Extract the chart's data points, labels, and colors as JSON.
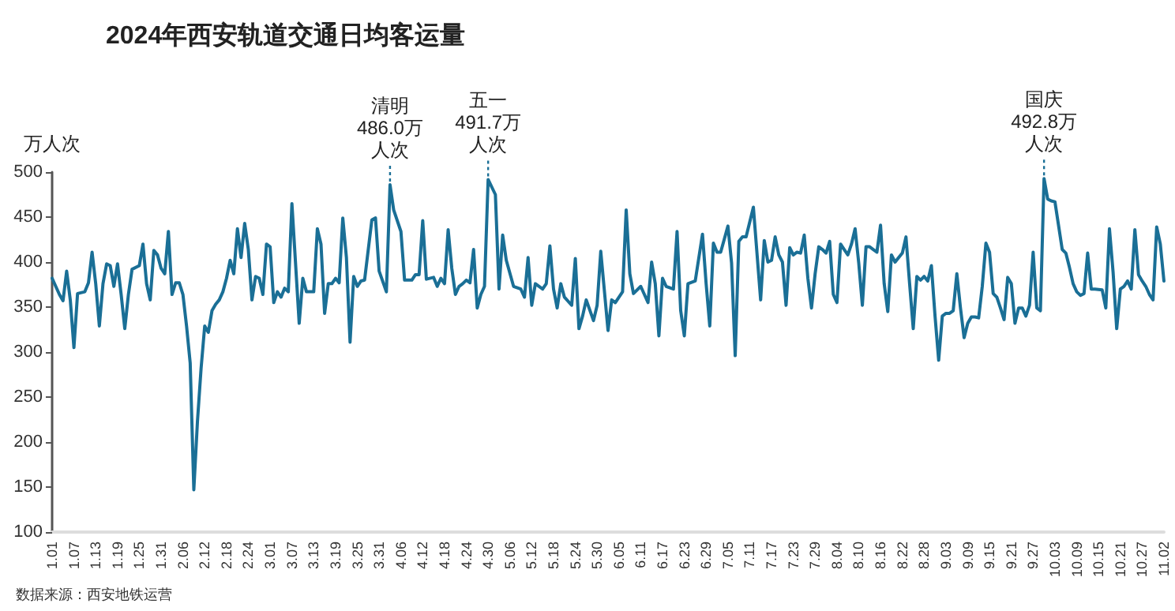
{
  "chart_data": {
    "type": "line",
    "title": "2024年西安轨道交通日均客运量",
    "ylabel": "万人次",
    "annotations": [
      {
        "text": "清明\n486.0万人次",
        "x": "2024-04-03",
        "y": 486.0
      },
      {
        "text": "五一\n491.7万人次",
        "x": "2024-04-30",
        "y": 491.7
      },
      {
        "text": "国庆\n492.8万人次",
        "x": "2024-09-30",
        "y": 492.8
      },
      "数据来源：西安地铁运营"
    ],
    "xlim": [
      "2024-01-01",
      "2024-11-02"
    ],
    "ylim": [
      100,
      500
    ],
    "yticks": [
      100,
      150,
      200,
      250,
      300,
      350,
      400,
      450,
      500
    ],
    "xticks": [
      {
        "value": "2024-01-01",
        "label": "1.01"
      },
      {
        "value": "2024-01-07",
        "label": "1.07"
      },
      {
        "value": "2024-01-13",
        "label": "1.13"
      },
      {
        "value": "2024-01-19",
        "label": "1.19"
      },
      {
        "value": "2024-01-25",
        "label": "1.25"
      },
      {
        "value": "2024-01-31",
        "label": "1.31"
      },
      {
        "value": "2024-02-06",
        "label": "2.06"
      },
      {
        "value": "2024-02-12",
        "label": "2.12"
      },
      {
        "value": "2024-02-18",
        "label": "2.18"
      },
      {
        "value": "2024-02-24",
        "label": "2.24"
      },
      {
        "value": "2024-03-01",
        "label": "3.01"
      },
      {
        "value": "2024-03-07",
        "label": "3.07"
      },
      {
        "value": "2024-03-13",
        "label": "3.13"
      },
      {
        "value": "2024-03-19",
        "label": "3.19"
      },
      {
        "value": "2024-03-25",
        "label": "3.25"
      },
      {
        "value": "2024-03-31",
        "label": "3.31"
      },
      {
        "value": "2024-04-06",
        "label": "4.06"
      },
      {
        "value": "2024-04-12",
        "label": "4.12"
      },
      {
        "value": "2024-04-18",
        "label": "4.18"
      },
      {
        "value": "2024-04-24",
        "label": "4.24"
      },
      {
        "value": "2024-04-30",
        "label": "4.30"
      },
      {
        "value": "2024-05-06",
        "label": "5.06"
      },
      {
        "value": "2024-05-12",
        "label": "5.12"
      },
      {
        "value": "2024-05-18",
        "label": "5.18"
      },
      {
        "value": "2024-05-24",
        "label": "5.24"
      },
      {
        "value": "2024-05-30",
        "label": "5.30"
      },
      {
        "value": "2024-06-05",
        "label": "6.05"
      },
      {
        "value": "2024-06-11",
        "label": "6.11"
      },
      {
        "value": "2024-06-17",
        "label": "6.17"
      },
      {
        "value": "2024-06-23",
        "label": "6.23"
      },
      {
        "value": "2024-06-29",
        "label": "6.29"
      },
      {
        "value": "2024-07-05",
        "label": "7.05"
      },
      {
        "value": "2024-07-11",
        "label": "7.11"
      },
      {
        "value": "2024-07-17",
        "label": "7.17"
      },
      {
        "value": "2024-07-23",
        "label": "7.23"
      },
      {
        "value": "2024-07-29",
        "label": "7.29"
      },
      {
        "value": "2024-08-04",
        "label": "8.04"
      },
      {
        "value": "2024-08-10",
        "label": "8.10"
      },
      {
        "value": "2024-08-16",
        "label": "8.16"
      },
      {
        "value": "2024-08-22",
        "label": "8.22"
      },
      {
        "value": "2024-08-28",
        "label": "8.28"
      },
      {
        "value": "2024-09-03",
        "label": "9.03"
      },
      {
        "value": "2024-09-09",
        "label": "9.09"
      },
      {
        "value": "2024-09-15",
        "label": "9.15"
      },
      {
        "value": "2024-09-21",
        "label": "9.21"
      },
      {
        "value": "2024-09-27",
        "label": "9.27"
      },
      {
        "value": "2024-10-03",
        "label": "10.03"
      },
      {
        "value": "2024-10-09",
        "label": "10.09"
      },
      {
        "value": "2024-10-15",
        "label": "10.15"
      },
      {
        "value": "2024-10-21",
        "label": "10.21"
      },
      {
        "value": "2024-10-27",
        "label": "10.27"
      },
      {
        "value": "2024-11-02",
        "label": "11.02"
      }
    ],
    "series": [
      {
        "color": "#1a6f96",
        "x": [
          "2024-01-01",
          "2024-01-03",
          "2024-01-04",
          "2024-01-05",
          "2024-01-06",
          "2024-01-07",
          "2024-01-08",
          "2024-01-10",
          "2024-01-11",
          "2024-01-12",
          "2024-01-13",
          "2024-01-14",
          "2024-01-15",
          "2024-01-16",
          "2024-01-17",
          "2024-01-18",
          "2024-01-19",
          "2024-01-20",
          "2024-01-21",
          "2024-01-22",
          "2024-01-23",
          "2024-01-25",
          "2024-01-26",
          "2024-01-27",
          "2024-01-28",
          "2024-01-29",
          "2024-01-30",
          "2024-01-31",
          "2024-02-01",
          "2024-02-02",
          "2024-02-03",
          "2024-02-04",
          "2024-02-05",
          "2024-02-06",
          "2024-02-07",
          "2024-02-08",
          "2024-02-09",
          "2024-02-10",
          "2024-02-11",
          "2024-02-12",
          "2024-02-13",
          "2024-02-14",
          "2024-02-15",
          "2024-02-16",
          "2024-02-17",
          "2024-02-18",
          "2024-02-19",
          "2024-02-20",
          "2024-02-21",
          "2024-02-22",
          "2024-02-23",
          "2024-02-24",
          "2024-02-25",
          "2024-02-26",
          "2024-02-27",
          "2024-02-28",
          "2024-02-29",
          "2024-03-01",
          "2024-03-02",
          "2024-03-03",
          "2024-03-04",
          "2024-03-05",
          "2024-03-06",
          "2024-03-07",
          "2024-03-09",
          "2024-03-10",
          "2024-03-11",
          "2024-03-13",
          "2024-03-14",
          "2024-03-15",
          "2024-03-16",
          "2024-03-17",
          "2024-03-18",
          "2024-03-19",
          "2024-03-20",
          "2024-03-21",
          "2024-03-22",
          "2024-03-23",
          "2024-03-24",
          "2024-03-25",
          "2024-03-26",
          "2024-03-27",
          "2024-03-29",
          "2024-03-30",
          "2024-03-31",
          "2024-04-02",
          "2024-04-03",
          "2024-04-04",
          "2024-04-06",
          "2024-04-07",
          "2024-04-09",
          "2024-04-10",
          "2024-04-11",
          "2024-04-12",
          "2024-04-13",
          "2024-04-15",
          "2024-04-16",
          "2024-04-17",
          "2024-04-18",
          "2024-04-19",
          "2024-04-20",
          "2024-04-21",
          "2024-04-22",
          "2024-04-23",
          "2024-04-24",
          "2024-04-25",
          "2024-04-26",
          "2024-04-27",
          "2024-04-28",
          "2024-04-29",
          "2024-04-30",
          "2024-05-02",
          "2024-05-03",
          "2024-05-04",
          "2024-05-05",
          "2024-05-07",
          "2024-05-09",
          "2024-05-10",
          "2024-05-11",
          "2024-05-12",
          "2024-05-13",
          "2024-05-15",
          "2024-05-16",
          "2024-05-17",
          "2024-05-18",
          "2024-05-19",
          "2024-05-20",
          "2024-05-21",
          "2024-05-23",
          "2024-05-24",
          "2024-05-25",
          "2024-05-26",
          "2024-05-27",
          "2024-05-29",
          "2024-05-30",
          "2024-05-31",
          "2024-06-02",
          "2024-06-03",
          "2024-06-04",
          "2024-06-06",
          "2024-06-07",
          "2024-06-08",
          "2024-06-09",
          "2024-06-11",
          "2024-06-12",
          "2024-06-13",
          "2024-06-14",
          "2024-06-15",
          "2024-06-16",
          "2024-06-17",
          "2024-06-18",
          "2024-06-20",
          "2024-06-21",
          "2024-06-22",
          "2024-06-23",
          "2024-06-24",
          "2024-06-26",
          "2024-06-28",
          "2024-06-29",
          "2024-06-30",
          "2024-07-01",
          "2024-07-02",
          "2024-07-03",
          "2024-07-05",
          "2024-07-06",
          "2024-07-07",
          "2024-07-08",
          "2024-07-09",
          "2024-07-10",
          "2024-07-12",
          "2024-07-14",
          "2024-07-15",
          "2024-07-16",
          "2024-07-17",
          "2024-07-18",
          "2024-07-19",
          "2024-07-20",
          "2024-07-21",
          "2024-07-22",
          "2024-07-23",
          "2024-07-24",
          "2024-07-25",
          "2024-07-26",
          "2024-07-27",
          "2024-07-28",
          "2024-07-29",
          "2024-07-30",
          "2024-07-31",
          "2024-08-01",
          "2024-08-02",
          "2024-08-03",
          "2024-08-04",
          "2024-08-05",
          "2024-08-06",
          "2024-08-07",
          "2024-08-08",
          "2024-08-09",
          "2024-08-10",
          "2024-08-11",
          "2024-08-12",
          "2024-08-13",
          "2024-08-14",
          "2024-08-15",
          "2024-08-16",
          "2024-08-17",
          "2024-08-18",
          "2024-08-19",
          "2024-08-20",
          "2024-08-21",
          "2024-08-22",
          "2024-08-23",
          "2024-08-24",
          "2024-08-25",
          "2024-08-26",
          "2024-08-27",
          "2024-08-28",
          "2024-08-29",
          "2024-08-30",
          "2024-08-31",
          "2024-09-01",
          "2024-09-02",
          "2024-09-03",
          "2024-09-04",
          "2024-09-05",
          "2024-09-06",
          "2024-09-07",
          "2024-09-08",
          "2024-09-09",
          "2024-09-10",
          "2024-09-11",
          "2024-09-12",
          "2024-09-13",
          "2024-09-14",
          "2024-09-15",
          "2024-09-16",
          "2024-09-17",
          "2024-09-18",
          "2024-09-19",
          "2024-09-20",
          "2024-09-21",
          "2024-09-22",
          "2024-09-23",
          "2024-09-24",
          "2024-09-25",
          "2024-09-26",
          "2024-09-27",
          "2024-09-28",
          "2024-09-29",
          "2024-09-30",
          "2024-10-01",
          "2024-10-02",
          "2024-10-03",
          "2024-10-05",
          "2024-10-06",
          "2024-10-07",
          "2024-10-08",
          "2024-10-09",
          "2024-10-10",
          "2024-10-11",
          "2024-10-12",
          "2024-10-13",
          "2024-10-14",
          "2024-10-16",
          "2024-10-17",
          "2024-10-18",
          "2024-10-19",
          "2024-10-20",
          "2024-10-21",
          "2024-10-22",
          "2024-10-23",
          "2024-10-24",
          "2024-10-25",
          "2024-10-26",
          "2024-10-27",
          "2024-10-28",
          "2024-10-29",
          "2024-10-30",
          "2024-10-31",
          "2024-11-01",
          "2024-11-02"
        ],
        "values": [
          382,
          364,
          357,
          390,
          358,
          305,
          365,
          367,
          377,
          411,
          376,
          329,
          376,
          398,
          396,
          373,
          398,
          364,
          326,
          364,
          392,
          396,
          420,
          376,
          358,
          413,
          408,
          393,
          387,
          434,
          364,
          377,
          377,
          364,
          329,
          288,
          147,
          223,
          282,
          329,
          322,
          346,
          353,
          358,
          367,
          382,
          402,
          387,
          437,
          405,
          443,
          414,
          358,
          384,
          382,
          364,
          420,
          417,
          355,
          367,
          361,
          371,
          367,
          465,
          332,
          382,
          367,
          367,
          437,
          420,
          343,
          376,
          376,
          382,
          377,
          449,
          405,
          311,
          384,
          373,
          379,
          380,
          447,
          449,
          390,
          367,
          486.0,
          458,
          434,
          380,
          380,
          386,
          386,
          446,
          381,
          383,
          373,
          382,
          376,
          436,
          393,
          364,
          373,
          376,
          380,
          377,
          414,
          349,
          364,
          373,
          491.7,
          475,
          370,
          430,
          402,
          373,
          370,
          361,
          405,
          352,
          376,
          370,
          376,
          418,
          370,
          349,
          376,
          361,
          352,
          404,
          326,
          340,
          358,
          335,
          352,
          412,
          324,
          358,
          355,
          367,
          458,
          387,
          365,
          373,
          364,
          355,
          400,
          376,
          318,
          382,
          373,
          370,
          434,
          346,
          318,
          376,
          379,
          431,
          376,
          329,
          421,
          411,
          411,
          440,
          399,
          296,
          423,
          428,
          428,
          461,
          358,
          424,
          400,
          402,
          428,
          408,
          400,
          352,
          416,
          408,
          411,
          410,
          430,
          382,
          349,
          387,
          417,
          414,
          410,
          423,
          364,
          355,
          420,
          414,
          408,
          420,
          437,
          399,
          352,
          417,
          417,
          414,
          411,
          441,
          376,
          345,
          408,
          400,
          405,
          410,
          428,
          376,
          326,
          384,
          380,
          384,
          379,
          396,
          340,
          291,
          340,
          343,
          343,
          346,
          387,
          349,
          316,
          332,
          339,
          339,
          338,
          373,
          421,
          411,
          365,
          361,
          349,
          336,
          383,
          376,
          332,
          349,
          349,
          340,
          352,
          411,
          349,
          346,
          492.8,
          470,
          468,
          467,
          414,
          410,
          394,
          376,
          367,
          363,
          365,
          410,
          370,
          370,
          369,
          349,
          437,
          389,
          326,
          370,
          373,
          379,
          370,
          436,
          386,
          379,
          373,
          364,
          358,
          439,
          420,
          379
        ]
      }
    ]
  }
}
